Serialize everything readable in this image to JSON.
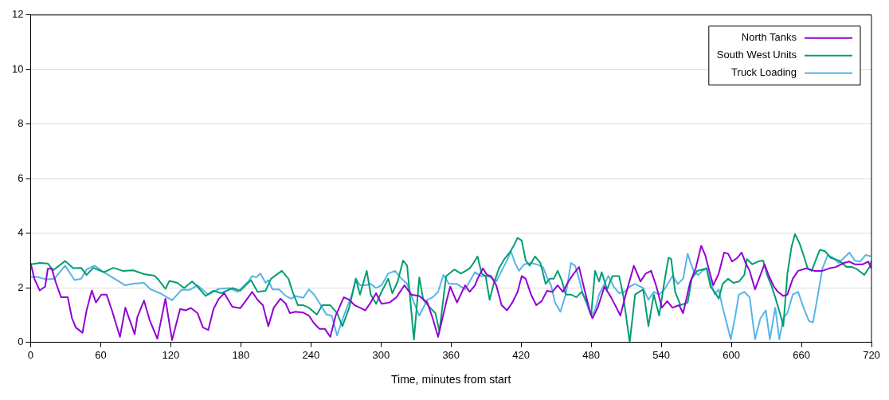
{
  "chart_data": {
    "type": "line",
    "xlabel": "Time, minutes from start",
    "xlim": [
      0,
      720
    ],
    "xticks": [
      0,
      60,
      120,
      180,
      240,
      300,
      360,
      420,
      480,
      540,
      600,
      660,
      720
    ],
    "ylim": [
      0,
      12
    ],
    "yticks": [
      0,
      2,
      4,
      6,
      8,
      10,
      12
    ],
    "grid": "y",
    "legend": "top right",
    "marker": "none",
    "line_style": "solid",
    "series": [
      {
        "name": "North Tanks",
        "color": "#9400d3",
        "x": [
          0,
          3.2,
          7.8,
          12.4,
          14.7,
          18.1,
          21.5,
          26.1,
          31.8,
          35.3,
          38.7,
          44.4,
          47.9,
          52.4,
          55.9,
          60.5,
          65,
          69.6,
          76.5,
          81.1,
          89.1,
          91.4,
          97.1,
          101.7,
          108.5,
          115.4,
          121.1,
          128,
          132.6,
          137.2,
          142.9,
          147.5,
          152.1,
          156.6,
          161.2,
          165.8,
          172.7,
          179.5,
          186.4,
          189.7,
          194.3,
          198.9,
          203.5,
          208.2,
          213.9,
          218.5,
          222,
          226.6,
          233.5,
          238.2,
          242.8,
          247.4,
          252,
          256.6,
          261.2,
          268.2,
          272.8,
          277.4,
          282,
          286.6,
          291.2,
          295.8,
          300.5,
          307.4,
          313.2,
          320.1,
          325.9,
          332.8,
          339.7,
          344.3,
          348.9,
          355.8,
          359.3,
          365.1,
          372,
          375.9,
          380.5,
          382.7,
          387.3,
          390.7,
          394.2,
          398.7,
          403.3,
          407.9,
          412.5,
          417,
          420.5,
          423.9,
          428.5,
          433,
          437.6,
          442.2,
          446.7,
          451.3,
          455.9,
          460.5,
          465,
          469.6,
          474.2,
          478.7,
          481,
          485.6,
          491.3,
          497,
          501.6,
          505,
          509.6,
          516.5,
          522.2,
          526.7,
          531.3,
          535.9,
          540.5,
          545.1,
          549.6,
          555.3,
          558.7,
          564.9,
          569.5,
          574.2,
          577.6,
          581.1,
          584.5,
          589.2,
          593.8,
          597.2,
          600.7,
          605.3,
          608.8,
          612.2,
          615.7,
          620.3,
          624.9,
          628.4,
          631.8,
          636.5,
          639.9,
          644.5,
          648,
          652.6,
          657.2,
          664.2,
          671.1,
          678,
          683.8,
          689.5,
          696.5,
          701.1,
          705.7,
          712.6,
          717.2,
          720
        ],
        "values": [
          2.9,
          2.33,
          1.9,
          2.04,
          2.7,
          2.7,
          2.2,
          1.65,
          1.65,
          0.9,
          0.54,
          0.35,
          1.17,
          1.9,
          1.46,
          1.75,
          1.75,
          1.17,
          0.2,
          1.27,
          0.3,
          0.93,
          1.53,
          0.84,
          0.13,
          1.6,
          0.08,
          1.22,
          1.17,
          1.26,
          1.07,
          0.55,
          0.45,
          1.22,
          1.6,
          1.8,
          1.3,
          1.25,
          1.65,
          1.85,
          1.56,
          1.36,
          0.59,
          1.27,
          1.6,
          1.41,
          1.07,
          1.12,
          1.09,
          0.98,
          0.69,
          0.49,
          0.49,
          0.2,
          0.98,
          1.65,
          1.56,
          1.36,
          1.27,
          1.17,
          1.46,
          1.8,
          1.41,
          1.46,
          1.65,
          2.09,
          1.75,
          1.7,
          1.46,
          0.88,
          0.2,
          1.46,
          2.04,
          1.46,
          2.09,
          1.85,
          2.09,
          2.33,
          2.71,
          2.47,
          2.43,
          2.09,
          1.36,
          1.17,
          1.46,
          1.85,
          2.43,
          2.33,
          1.75,
          1.36,
          1.51,
          1.89,
          1.85,
          2.09,
          1.85,
          2.23,
          2.52,
          2.76,
          1.94,
          1.17,
          0.88,
          1.27,
          2.04,
          1.65,
          1.27,
          0.98,
          1.75,
          2.81,
          2.23,
          2.52,
          2.62,
          2.04,
          1.27,
          1.51,
          1.27,
          1.36,
          1.07,
          2.23,
          2.71,
          3.54,
          3.2,
          2.62,
          2.09,
          2.52,
          3.29,
          3.25,
          2.96,
          3.1,
          3.29,
          2.91,
          2.62,
          1.94,
          2.47,
          2.86,
          2.47,
          2.04,
          1.85,
          1.7,
          1.75,
          2.33,
          2.62,
          2.71,
          2.62,
          2.62,
          2.71,
          2.76,
          2.91,
          2.96,
          2.86,
          2.86,
          2.96,
          2.71
        ]
      },
      {
        "name": "South West Units",
        "color": "#009e73",
        "x": [
          0,
          7.8,
          14.7,
          19.2,
          29.5,
          36.4,
          43.3,
          47.9,
          53.6,
          62.7,
          70.8,
          78.8,
          87.9,
          97.1,
          106.2,
          109.7,
          115.4,
          118.8,
          125.7,
          131.4,
          138.3,
          142.9,
          149.8,
          156.6,
          163.5,
          172.7,
          179.5,
          188.7,
          194.3,
          201.2,
          205.8,
          215.1,
          220.8,
          224.3,
          228.9,
          233.5,
          238.2,
          245.1,
          249.7,
          256.6,
          262.4,
          267,
          272.8,
          278.5,
          282,
          287.8,
          291.2,
          295.8,
          300.5,
          306.2,
          309.7,
          314.3,
          318.9,
          322.4,
          328.2,
          332.8,
          336.2,
          342,
          346.6,
          350,
          355.8,
          362.8,
          368.5,
          375.9,
          379.3,
          382.7,
          386.2,
          389.6,
          393,
          396.5,
          401,
          405.6,
          410.2,
          413.6,
          417,
          420.5,
          423.9,
          427.3,
          431.9,
          436.5,
          441,
          444.5,
          447.9,
          451.3,
          454.7,
          458.2,
          462.7,
          467.3,
          471.9,
          476.5,
          479.9,
          483.3,
          486.7,
          489,
          493.6,
          498.2,
          503.9,
          507.3,
          513,
          517.6,
          524.5,
          529,
          533.6,
          538.2,
          542.7,
          546.2,
          548.5,
          551.9,
          556.5,
          562.6,
          566.1,
          570.7,
          575.3,
          578.8,
          582.2,
          585.7,
          589.2,
          592.6,
          597.2,
          601.8,
          606.5,
          611.1,
          613.4,
          618,
          622.6,
          627.2,
          630.7,
          634.2,
          637.6,
          642.2,
          644.5,
          648,
          651.5,
          654.5,
          658.4,
          661.8,
          665.3,
          668.8,
          672.2,
          675.7,
          680.3,
          684.9,
          691.9,
          698.8,
          703.4,
          708,
          713.8,
          718.4,
          720
        ],
        "values": [
          2.86,
          2.91,
          2.89,
          2.64,
          2.98,
          2.72,
          2.73,
          2.47,
          2.73,
          2.57,
          2.73,
          2.62,
          2.64,
          2.5,
          2.44,
          2.28,
          1.96,
          2.25,
          2.18,
          1.99,
          2.23,
          2.04,
          1.7,
          1.89,
          1.8,
          1.99,
          1.89,
          2.28,
          1.85,
          1.89,
          2.33,
          2.62,
          2.33,
          1.85,
          1.36,
          1.36,
          1.27,
          1.02,
          1.36,
          1.36,
          1.07,
          0.59,
          1.27,
          2.33,
          1.75,
          2.62,
          1.75,
          1.41,
          1.85,
          2.33,
          1.8,
          2.23,
          3.0,
          2.81,
          0.1,
          2.38,
          1.56,
          1.27,
          1.07,
          0.4,
          2.43,
          2.67,
          2.52,
          2.71,
          2.91,
          3.15,
          2.52,
          2.43,
          1.56,
          2.14,
          2.71,
          3.05,
          3.29,
          3.54,
          3.83,
          3.73,
          3.0,
          2.81,
          3.15,
          2.91,
          2.14,
          2.33,
          2.33,
          2.62,
          2.28,
          1.75,
          1.75,
          1.65,
          1.85,
          1.46,
          0.98,
          2.62,
          2.23,
          2.57,
          1.94,
          2.43,
          2.43,
          1.75,
          0,
          1.75,
          1.94,
          0.59,
          1.75,
          0.98,
          2.23,
          3.1,
          3.05,
          1.85,
          1.36,
          1.46,
          2.33,
          2.62,
          2.67,
          2.71,
          2.04,
          1.85,
          1.6,
          2.14,
          2.33,
          2.18,
          2.23,
          2.47,
          3.05,
          2.86,
          2.96,
          3.0,
          2.47,
          2.09,
          1.65,
          0.98,
          0.59,
          2.52,
          3.49,
          3.97,
          3.63,
          3.2,
          2.71,
          2.62,
          3.0,
          3.39,
          3.34,
          3.1,
          3.0,
          2.76,
          2.76,
          2.67,
          2.47,
          2.76,
          3.0
        ]
      },
      {
        "name": "Truck Loading",
        "color": "#56b4e9",
        "x": [
          0,
          6.6,
          11.2,
          14.7,
          20.4,
          29.5,
          37.6,
          43.3,
          47.9,
          54.7,
          62.7,
          71.9,
          81.1,
          87.9,
          97.1,
          102.8,
          110.8,
          121.1,
          129.1,
          136,
          142.9,
          152.1,
          161.2,
          170.4,
          177.3,
          186.4,
          189.7,
          193.2,
          196.7,
          201.2,
          203.5,
          207,
          212.8,
          218.5,
          223.2,
          226.6,
          233.5,
          238.2,
          242.8,
          248.5,
          253.2,
          257.8,
          262.4,
          268.2,
          275.1,
          278.5,
          282,
          286.6,
          291.2,
          295.8,
          300.5,
          306.2,
          312,
          316.6,
          322.4,
          328.2,
          332.8,
          339.7,
          344.3,
          348.9,
          353.5,
          358.2,
          365.1,
          372,
          375.9,
          380.5,
          385,
          389.6,
          394.2,
          398.7,
          403.3,
          407.9,
          411.3,
          414.7,
          418.2,
          422.7,
          428.5,
          433,
          438.7,
          442.2,
          445.6,
          449,
          453.6,
          458.2,
          462.7,
          466.2,
          469.6,
          473,
          476.5,
          479.9,
          483.3,
          486.7,
          491.3,
          494.7,
          499.3,
          503.9,
          508.5,
          513,
          517.6,
          524.5,
          529,
          533.6,
          538.2,
          542.7,
          549.6,
          554.2,
          558.7,
          562.6,
          564.9,
          568.4,
          571.8,
          575.3,
          578.8,
          582.2,
          585.7,
          589.2,
          592.6,
          596.1,
          599.5,
          603,
          606.5,
          611.1,
          615.7,
          620.3,
          624.9,
          629.5,
          633,
          637.6,
          641.1,
          644.5,
          648,
          652.6,
          657.2,
          661.8,
          666.5,
          669.9,
          673.4,
          678,
          682.6,
          687.2,
          691.9,
          696.5,
          701.1,
          705.7,
          710.3,
          714.9,
          719.5
        ],
        "values": [
          2.4,
          2.39,
          2.33,
          2.31,
          2.33,
          2.81,
          2.28,
          2.33,
          2.67,
          2.81,
          2.57,
          2.33,
          2.09,
          2.15,
          2.18,
          1.94,
          1.8,
          1.54,
          1.92,
          1.92,
          2.09,
          1.75,
          1.96,
          1.99,
          1.85,
          2.23,
          2.43,
          2.38,
          2.52,
          2.18,
          2.28,
          1.94,
          1.94,
          1.7,
          1.6,
          1.7,
          1.63,
          1.94,
          1.75,
          1.36,
          1.02,
          0.98,
          0.25,
          0.98,
          1.75,
          2.33,
          2.09,
          2.09,
          2.14,
          1.99,
          2.09,
          2.52,
          2.62,
          2.38,
          2.14,
          1.46,
          0.98,
          1.56,
          1.65,
          1.85,
          2.47,
          2.14,
          2.14,
          1.94,
          2.23,
          2.57,
          2.43,
          2.43,
          2.38,
          2.23,
          2.62,
          3.0,
          3.34,
          2.91,
          2.62,
          2.86,
          2.91,
          2.86,
          2.76,
          2.38,
          2.09,
          1.46,
          1.12,
          1.75,
          2.91,
          2.81,
          2.33,
          1.75,
          1.36,
          0.98,
          1.17,
          1.75,
          2.14,
          2.43,
          2.04,
          1.8,
          1.85,
          2.04,
          2.14,
          1.99,
          1.56,
          1.85,
          1.75,
          1.94,
          2.43,
          2.14,
          2.33,
          3.25,
          2.94,
          2.55,
          2.47,
          2.62,
          2.71,
          2.23,
          1.75,
          1.94,
          1.27,
          0.69,
          0.11,
          0.88,
          1.75,
          1.85,
          1.65,
          0.11,
          0.88,
          1.17,
          0.11,
          1.27,
          0.11,
          0.88,
          1.07,
          1.75,
          1.85,
          1.27,
          0.78,
          0.73,
          1.56,
          2.71,
          3.2,
          3.1,
          2.91,
          3.1,
          3.29,
          3.0,
          2.96,
          3.2,
          3.15
        ]
      }
    ]
  }
}
